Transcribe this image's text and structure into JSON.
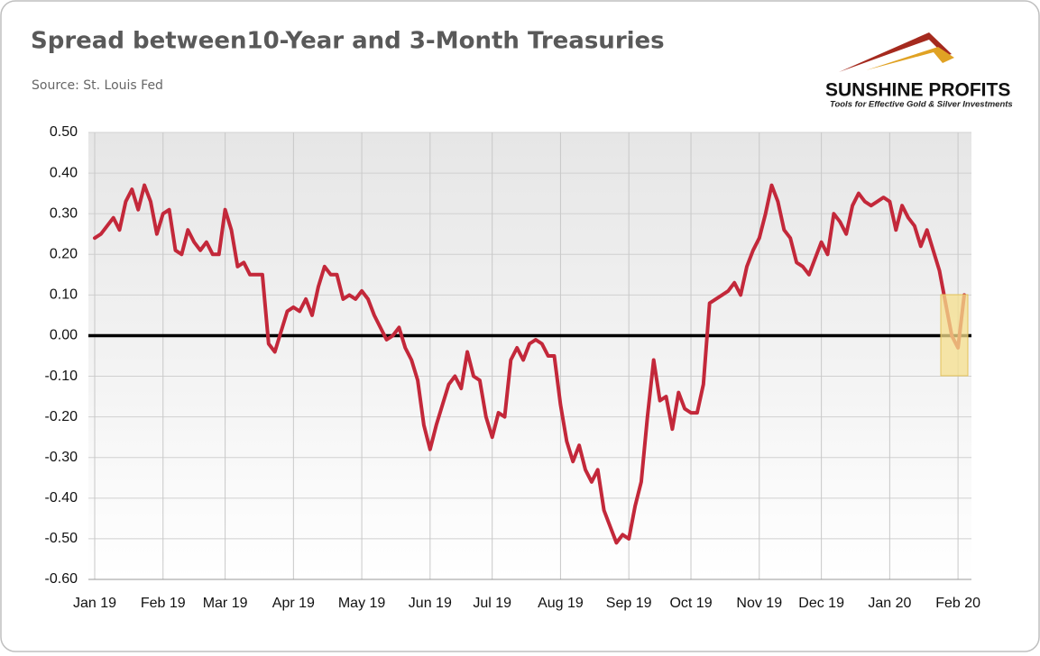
{
  "chart_data": {
    "type": "line",
    "title": "Spread between10-Year and 3-Month Treasuries",
    "subtitle": "Source: St. Louis Fed",
    "logo": {
      "name": "SUNSHINE PROFITS",
      "tagline": "Tools for Effective Gold & Silver Investments"
    },
    "categories": [
      "Jan 19",
      null,
      null,
      null,
      null,
      null,
      null,
      null,
      null,
      null,
      null,
      "Feb 19",
      null,
      null,
      null,
      null,
      null,
      null,
      null,
      null,
      null,
      "Mar 19",
      null,
      null,
      null,
      null,
      null,
      null,
      null,
      null,
      null,
      null,
      "Apr 19",
      null,
      null,
      null,
      null,
      null,
      null,
      null,
      null,
      null,
      null,
      "May 19",
      null,
      null,
      null,
      null,
      null,
      null,
      null,
      null,
      null,
      null,
      "Jun 19",
      null,
      null,
      null,
      null,
      null,
      null,
      null,
      null,
      null,
      "Jul 19",
      null,
      null,
      null,
      null,
      null,
      null,
      null,
      null,
      null,
      null,
      "Aug 19",
      null,
      null,
      null,
      null,
      null,
      null,
      null,
      null,
      null,
      null,
      "Sep 19",
      null,
      null,
      null,
      null,
      null,
      null,
      null,
      null,
      null,
      "Oct 19",
      null,
      null,
      null,
      null,
      null,
      null,
      null,
      null,
      null,
      null,
      "Nov 19",
      null,
      null,
      null,
      null,
      null,
      null,
      null,
      null,
      null,
      "Dec 19",
      null,
      null,
      null,
      null,
      null,
      null,
      null,
      null,
      null,
      null,
      "Jan 20",
      null,
      null,
      null,
      null,
      null,
      null,
      null,
      null,
      null,
      null,
      "Feb 20",
      null
    ],
    "values": [
      0.24,
      0.25,
      0.27,
      0.29,
      0.26,
      0.33,
      0.36,
      0.31,
      0.37,
      0.33,
      0.25,
      0.3,
      0.31,
      0.21,
      0.2,
      0.26,
      0.23,
      0.21,
      0.23,
      0.2,
      0.2,
      0.31,
      0.26,
      0.17,
      0.18,
      0.15,
      0.15,
      0.15,
      -0.02,
      -0.04,
      0.01,
      0.06,
      0.07,
      0.06,
      0.09,
      0.05,
      0.12,
      0.17,
      0.15,
      0.15,
      0.09,
      0.1,
      0.09,
      0.11,
      0.09,
      0.05,
      0.02,
      -0.01,
      0.0,
      0.02,
      -0.03,
      -0.06,
      -0.11,
      -0.22,
      -0.28,
      -0.22,
      -0.17,
      -0.12,
      -0.1,
      -0.13,
      -0.04,
      -0.1,
      -0.11,
      -0.2,
      -0.25,
      -0.19,
      -0.2,
      -0.06,
      -0.03,
      -0.06,
      -0.02,
      -0.01,
      -0.02,
      -0.05,
      -0.05,
      -0.17,
      -0.26,
      -0.31,
      -0.27,
      -0.33,
      -0.36,
      -0.33,
      -0.43,
      -0.47,
      -0.51,
      -0.49,
      -0.5,
      -0.42,
      -0.36,
      -0.2,
      -0.06,
      -0.16,
      -0.15,
      -0.23,
      -0.14,
      -0.18,
      -0.19,
      -0.19,
      -0.12,
      0.08,
      0.09,
      0.1,
      0.11,
      0.13,
      0.1,
      0.17,
      0.21,
      0.24,
      0.3,
      0.37,
      0.33,
      0.26,
      0.24,
      0.18,
      0.17,
      0.15,
      0.19,
      0.23,
      0.2,
      0.3,
      0.28,
      0.25,
      0.32,
      0.35,
      0.33,
      0.32,
      0.33,
      0.34,
      0.33,
      0.26,
      0.32,
      0.29,
      0.27,
      0.22,
      0.26,
      0.21,
      0.16,
      0.08,
      0.0,
      -0.03,
      0.1
    ],
    "color": "#c3283a",
    "ylim": [
      -0.6,
      0.5
    ],
    "yticks": [
      {
        "value": -0.6,
        "label": "-0.60"
      },
      {
        "value": -0.5,
        "label": "-0.50"
      },
      {
        "value": -0.4,
        "label": "-0.40"
      },
      {
        "value": -0.3,
        "label": "-0.30"
      },
      {
        "value": -0.2,
        "label": "-0.20"
      },
      {
        "value": -0.1,
        "label": "-0.10"
      },
      {
        "value": 0,
        "label": "0.00"
      },
      {
        "value": 0.1,
        "label": "0.10"
      },
      {
        "value": 0.2,
        "label": "0.20"
      },
      {
        "value": 0.3,
        "label": "0.30"
      },
      {
        "value": 0.4,
        "label": "0.40"
      },
      {
        "value": 0.5,
        "label": "0.50"
      }
    ],
    "grid": true
  }
}
